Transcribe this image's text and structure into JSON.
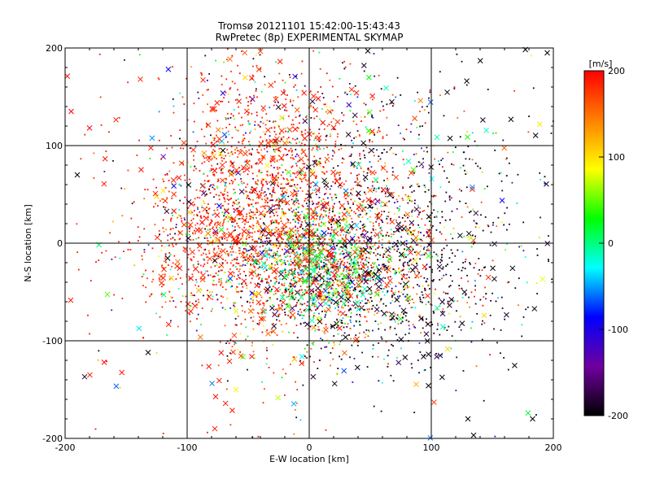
{
  "chart_data": {
    "type": "scatter",
    "title": "Tromsø 20121101 15:42:00-15:43:43",
    "subtitle": "RwPretec (8p) EXPERIMENTAL SKYMAP",
    "xlabel": "E-W location [km]",
    "ylabel": "N-S location [km]",
    "xlim": [
      -200,
      200
    ],
    "ylim": [
      -200,
      200
    ],
    "xticks": [
      "-200",
      "-100",
      "0",
      "100",
      "200"
    ],
    "yticks": [
      "-200",
      "-100",
      "0",
      "100",
      "200"
    ],
    "grid": true,
    "colorbar": {
      "label": "[m/s]",
      "range": [
        -200,
        200
      ],
      "ticks": [
        "200",
        "100",
        "0",
        "-100",
        "-200"
      ],
      "stops": [
        "#000000",
        "#7000a0",
        "#0000ff",
        "#00ffff",
        "#00ff00",
        "#ffff00",
        "#ff8000",
        "#ff0000"
      ]
    },
    "markers": {
      "detections": "point",
      "meteors": "x"
    },
    "clusters": [
      {
        "cx": 0,
        "cy": 0,
        "sx": 55,
        "sy": 60,
        "n": 2200,
        "vel": "mixed"
      },
      {
        "cx": -45,
        "cy": 60,
        "sx": 40,
        "sy": 55,
        "n": 900,
        "vel": "red"
      },
      {
        "cx": -90,
        "cy": -10,
        "sx": 35,
        "sy": 30,
        "n": 250,
        "vel": "red"
      },
      {
        "cx": 70,
        "cy": -40,
        "sx": 45,
        "sy": 45,
        "n": 500,
        "vel": "dark"
      },
      {
        "cx": 110,
        "cy": 30,
        "sx": 60,
        "sy": 60,
        "n": 300,
        "vel": "dark"
      },
      {
        "cx": 10,
        "cy": -25,
        "sx": 25,
        "sy": 25,
        "n": 600,
        "vel": "green"
      },
      {
        "cx": 0,
        "cy": 140,
        "sx": 60,
        "sy": 40,
        "n": 200,
        "vel": "mixed"
      }
    ],
    "sample_points": [
      {
        "x": -195,
        "y": 135,
        "v": 200
      },
      {
        "x": -180,
        "y": 118,
        "v": 200
      },
      {
        "x": -190,
        "y": 70,
        "v": -200
      },
      {
        "x": -168,
        "y": -122,
        "v": 200
      },
      {
        "x": -132,
        "y": -112,
        "v": -200
      },
      {
        "x": -60,
        "y": -150,
        "v": 90
      },
      {
        "x": 130,
        "y": -180,
        "v": -200
      },
      {
        "x": 183,
        "y": -180,
        "v": -200
      },
      {
        "x": 195,
        "y": 195,
        "v": -200
      },
      {
        "x": 48,
        "y": 197,
        "v": -200
      }
    ]
  }
}
